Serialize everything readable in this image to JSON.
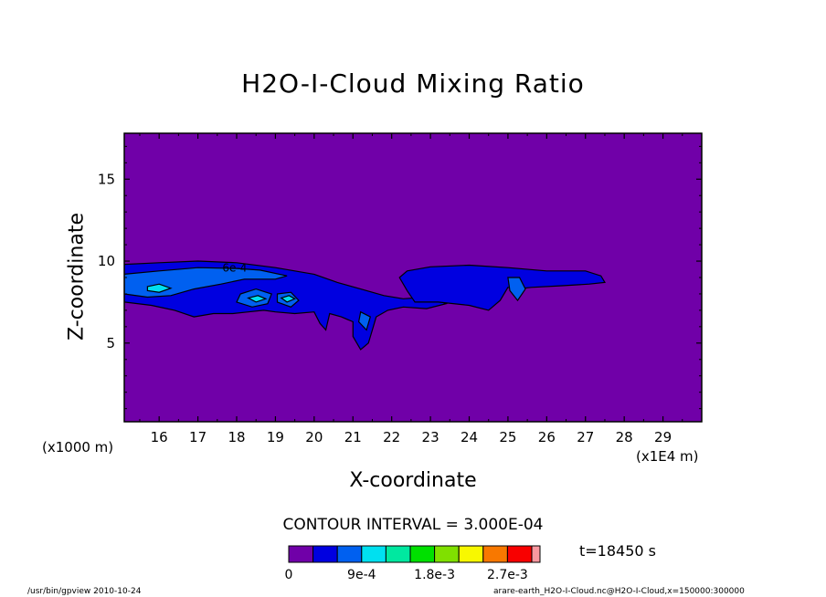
{
  "title": "H2O-I-Cloud Mixing Ratio",
  "footer_left": "/usr/bin/gpview  2010-10-24",
  "footer_right": "arare-earth_H2O-I-Cloud.nc@H2O-I-Cloud,x=150000:300000",
  "time_label": "t=18450 s",
  "contour_interval_label": "CONTOUR INTERVAL = 3.000E-04",
  "x_unit_left": "(x1000 m)",
  "x_unit_right": "(x1E4 m)",
  "contour_label": "6e-4",
  "chart_data": {
    "type": "heatmap",
    "title": "H2O-I-Cloud Mixing Ratio",
    "xlabel": "X-coordinate",
    "ylabel": "Z-coordinate",
    "x_ticks": [
      "16",
      "17",
      "18",
      "19",
      "20",
      "21",
      "22",
      "23",
      "24",
      "25",
      "26",
      "27",
      "28",
      "29"
    ],
    "x_tick_values": [
      16,
      17,
      18,
      19,
      20,
      21,
      22,
      23,
      24,
      25,
      26,
      27,
      28,
      29
    ],
    "y_ticks": [
      "5",
      "10",
      "15"
    ],
    "y_tick_values": [
      5,
      10,
      15
    ],
    "xlim": [
      15.1,
      30
    ],
    "ylim": [
      0.2,
      17.8
    ],
    "background_color": "#7000a8",
    "colorbar": {
      "colors": [
        "#7000a8",
        "#0000e0",
        "#0060f0",
        "#00e0f0",
        "#00e8a0",
        "#00e000",
        "#80e000",
        "#f8f800",
        "#f87800",
        "#f80000",
        "#f898a0"
      ],
      "tick_labels": [
        "0",
        "9e-4",
        "1.8e-3",
        "2.7e-3"
      ],
      "tick_values": [
        0,
        0.0009,
        0.0018,
        0.0027
      ],
      "interval": 0.0003
    },
    "regions": [
      {
        "level": 1,
        "color": "#0000e0",
        "points": [
          [
            15.1,
            9.8
          ],
          [
            16,
            9.9
          ],
          [
            17,
            10.0
          ],
          [
            18,
            9.9
          ],
          [
            19,
            9.6
          ],
          [
            20,
            9.2
          ],
          [
            20.6,
            8.7
          ],
          [
            21.2,
            8.3
          ],
          [
            21.8,
            7.9
          ],
          [
            22.3,
            7.7
          ],
          [
            22.9,
            7.8
          ],
          [
            23.2,
            7.6
          ],
          [
            23.4,
            7.4
          ],
          [
            22.9,
            7.1
          ],
          [
            22.3,
            7.2
          ],
          [
            21.9,
            7.0
          ],
          [
            21.6,
            6.6
          ],
          [
            21.5,
            5.8
          ],
          [
            21.4,
            5.0
          ],
          [
            21.2,
            4.6
          ],
          [
            21.0,
            5.4
          ],
          [
            21.0,
            6.3
          ],
          [
            20.7,
            6.6
          ],
          [
            20.4,
            6.8
          ],
          [
            20.3,
            5.8
          ],
          [
            20.15,
            6.2
          ],
          [
            20.0,
            6.9
          ],
          [
            19.5,
            6.8
          ],
          [
            19.0,
            6.9
          ],
          [
            18.7,
            7.0
          ],
          [
            18.3,
            6.9
          ],
          [
            17.9,
            6.8
          ],
          [
            17.4,
            6.8
          ],
          [
            16.9,
            6.6
          ],
          [
            16.4,
            7.0
          ],
          [
            15.8,
            7.3
          ],
          [
            15.1,
            7.5
          ]
        ]
      },
      {
        "level": 1,
        "color": "#0000e0",
        "points": [
          [
            22.4,
            9.4
          ],
          [
            23,
            9.65
          ],
          [
            24,
            9.75
          ],
          [
            25,
            9.6
          ],
          [
            26,
            9.4
          ],
          [
            27,
            9.4
          ],
          [
            27.4,
            9.1
          ],
          [
            27.5,
            8.7
          ],
          [
            27.1,
            8.6
          ],
          [
            26.4,
            8.5
          ],
          [
            25.6,
            8.4
          ],
          [
            25.2,
            8.3
          ],
          [
            25.0,
            8.4
          ],
          [
            24.8,
            7.6
          ],
          [
            24.5,
            7.0
          ],
          [
            24.0,
            7.3
          ],
          [
            23.2,
            7.5
          ],
          [
            22.6,
            7.5
          ],
          [
            22.4,
            8.2
          ],
          [
            22.2,
            9.0
          ]
        ]
      },
      {
        "level": 2,
        "color": "#0060f0",
        "points": [
          [
            15.1,
            9.2
          ],
          [
            16,
            9.4
          ],
          [
            17,
            9.6
          ],
          [
            18,
            9.55
          ],
          [
            18.6,
            9.45
          ],
          [
            19.3,
            9.1
          ],
          [
            19.0,
            8.9
          ],
          [
            18.2,
            8.9
          ],
          [
            17.6,
            8.6
          ],
          [
            16.9,
            8.3
          ],
          [
            16.3,
            7.9
          ],
          [
            15.7,
            7.8
          ],
          [
            15.1,
            8.0
          ]
        ]
      },
      {
        "level": 2,
        "color": "#0060f0",
        "points": [
          [
            18.1,
            8.0
          ],
          [
            18.5,
            8.3
          ],
          [
            18.9,
            8.0
          ],
          [
            18.8,
            7.4
          ],
          [
            18.4,
            7.2
          ],
          [
            18.0,
            7.5
          ]
        ]
      },
      {
        "level": 2,
        "color": "#0060f0",
        "points": [
          [
            19.05,
            8.0
          ],
          [
            19.4,
            8.1
          ],
          [
            19.6,
            7.6
          ],
          [
            19.4,
            7.2
          ],
          [
            19.05,
            7.5
          ]
        ]
      },
      {
        "level": 2,
        "color": "#0060f0",
        "points": [
          [
            21.2,
            6.9
          ],
          [
            21.45,
            6.6
          ],
          [
            21.35,
            5.8
          ],
          [
            21.15,
            6.3
          ]
        ]
      },
      {
        "level": 2,
        "color": "#0060f0",
        "points": [
          [
            25.0,
            9.0
          ],
          [
            25.3,
            9.0
          ],
          [
            25.45,
            8.3
          ],
          [
            25.25,
            7.6
          ],
          [
            25.05,
            8.2
          ]
        ]
      },
      {
        "level": 3,
        "color": "#00e0f0",
        "points": [
          [
            15.7,
            8.45
          ],
          [
            16.0,
            8.6
          ],
          [
            16.3,
            8.35
          ],
          [
            16.0,
            8.1
          ],
          [
            15.7,
            8.2
          ]
        ]
      },
      {
        "level": 3,
        "color": "#00e0f0",
        "points": [
          [
            18.3,
            7.75
          ],
          [
            18.55,
            7.9
          ],
          [
            18.75,
            7.7
          ],
          [
            18.5,
            7.5
          ]
        ]
      },
      {
        "level": 3,
        "color": "#00e0f0",
        "points": [
          [
            19.15,
            7.75
          ],
          [
            19.35,
            7.9
          ],
          [
            19.5,
            7.7
          ],
          [
            19.3,
            7.5
          ]
        ]
      }
    ]
  }
}
